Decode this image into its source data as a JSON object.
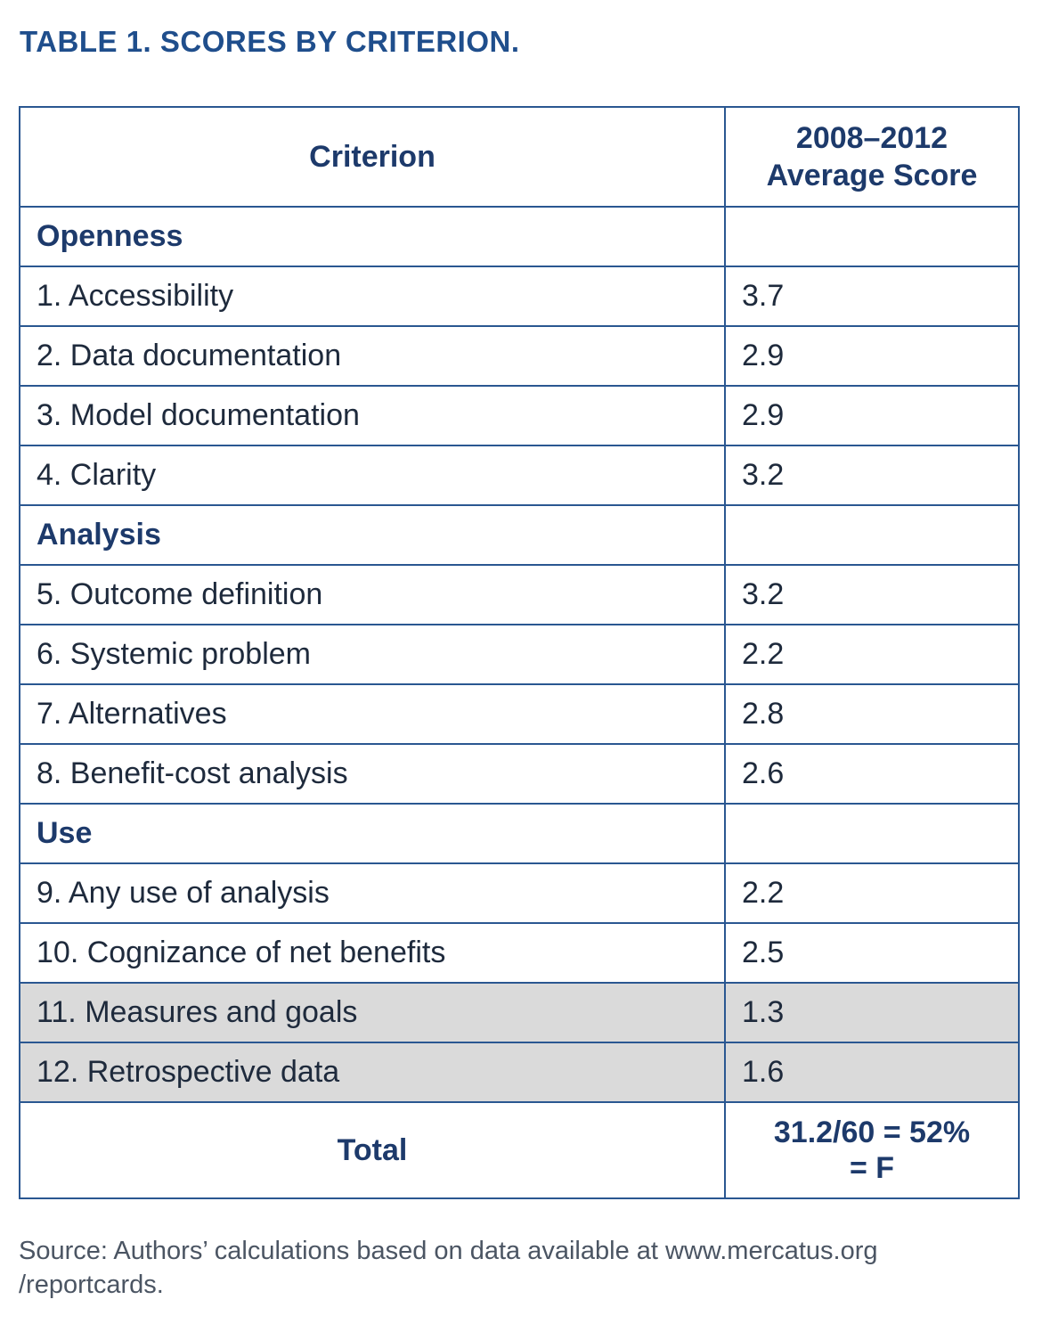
{
  "title": "TABLE 1. SCORES BY CRITERION.",
  "header": {
    "criterion": "Criterion",
    "score_line1": "2008–2012",
    "score_line2": "Average Score"
  },
  "rows": [
    {
      "type": "category",
      "criterion": "Openness",
      "score": ""
    },
    {
      "type": "item",
      "criterion": "1. Accessibility",
      "score": "3.7"
    },
    {
      "type": "item",
      "criterion": "2. Data documentation",
      "score": "2.9"
    },
    {
      "type": "item",
      "criterion": "3. Model documentation",
      "score": "2.9"
    },
    {
      "type": "item",
      "criterion": "4. Clarity",
      "score": "3.2"
    },
    {
      "type": "category",
      "criterion": "Analysis",
      "score": ""
    },
    {
      "type": "item",
      "criterion": "5. Outcome definition",
      "score": "3.2"
    },
    {
      "type": "item",
      "criterion": "6. Systemic problem",
      "score": "2.2"
    },
    {
      "type": "item",
      "criterion": "7. Alternatives",
      "score": "2.8"
    },
    {
      "type": "item",
      "criterion": "8. Benefit-cost analysis",
      "score": "2.6"
    },
    {
      "type": "category",
      "criterion": "Use",
      "score": ""
    },
    {
      "type": "item",
      "criterion": "9. Any use of analysis",
      "score": "2.2"
    },
    {
      "type": "item",
      "criterion": "10. Cognizance of net benefits",
      "score": "2.5"
    },
    {
      "type": "item",
      "criterion": "11. Measures and goals",
      "score": "1.3",
      "shaded": true
    },
    {
      "type": "item",
      "criterion": "12. Retrospective data",
      "score": "1.6",
      "shaded": true
    }
  ],
  "total": {
    "label": "Total",
    "value_line1": "31.2/60 = 52%",
    "value_line2": "= F"
  },
  "source": {
    "line1": "Source: Authors’ calculations based on data available at www.mercatus.org",
    "line2": "/reportcards."
  },
  "colors": {
    "title": "#1f4e8c",
    "border": "#2a5791",
    "shaded_row": "#dadada"
  }
}
